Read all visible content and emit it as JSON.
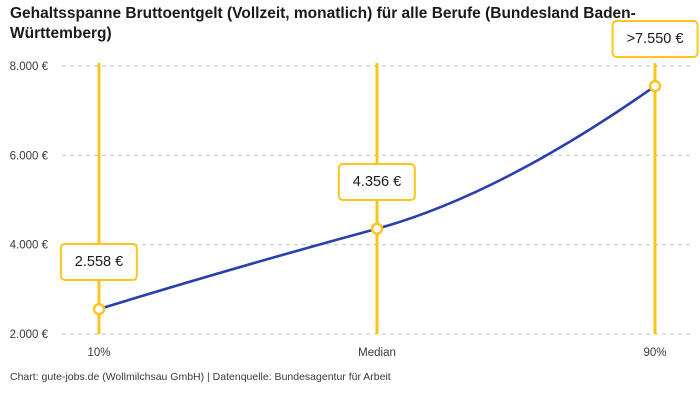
{
  "title": "Gehaltsspanne Bruttoentgelt (Vollzeit, monatlich) für alle Berufe (Bundesland Baden-Württemberg)",
  "footer": "Chart: gute-jobs.de (Wollmilchsau GmbH) | Datenquelle: Bundesagentur für Arbeit",
  "colors": {
    "accent_yellow": "#fcc41d",
    "line_blue": "#2a3eae",
    "grid_gray": "#c9c9c9",
    "tick_text": "#3a3a3a",
    "title_text": "#1a1a1a"
  },
  "chart_data": {
    "type": "line",
    "title": "Gehaltsspanne Bruttoentgelt (Vollzeit, monatlich) für alle Berufe (Bundesland Baden-Württemberg)",
    "categories": [
      "10%",
      "Median",
      "90%"
    ],
    "values": [
      2558,
      4356,
      7550
    ],
    "point_labels": [
      "2.558 €",
      "4.356 €",
      ">7.550 €"
    ],
    "series": [
      {
        "name": "Bruttoentgelt",
        "values": [
          2558,
          4356,
          7550
        ]
      }
    ],
    "xlabel": "",
    "ylabel": "",
    "ylim": [
      2000,
      8000
    ],
    "yticks": [
      2000,
      4000,
      6000,
      8000
    ],
    "ytick_labels": [
      "2.000 €",
      "4.000 €",
      "6.000 €",
      "8.000 €"
    ],
    "grid": "horizontal-dashed",
    "legend": "none",
    "marker": "open-circle",
    "annotation_note": "vertical yellow guide lines at each percentile"
  }
}
